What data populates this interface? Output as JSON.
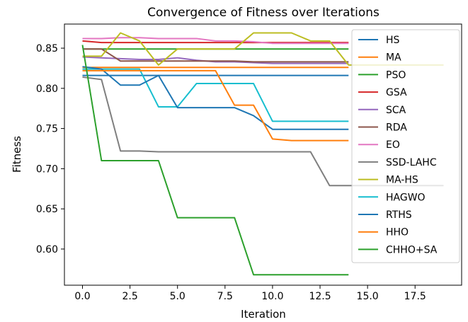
{
  "chart_data": {
    "type": "line",
    "title": "Convergence of Fitness over Iterations",
    "xlabel": "Iteration",
    "ylabel": "Fitness",
    "xlim": [
      -0.95,
      19.95
    ],
    "ylim": [
      0.555,
      0.88
    ],
    "xticks": [
      0.0,
      2.5,
      5.0,
      7.5,
      10.0,
      12.5,
      15.0,
      17.5
    ],
    "xtick_labels": [
      "0.0",
      "2.5",
      "5.0",
      "7.5",
      "10.0",
      "12.5",
      "15.0",
      "17.5"
    ],
    "yticks": [
      0.6,
      0.65,
      0.7,
      0.75,
      0.8,
      0.85
    ],
    "ytick_labels": [
      "0.60",
      "0.65",
      "0.70",
      "0.75",
      "0.80",
      "0.85"
    ],
    "grid": false,
    "legend_position": "right",
    "series": [
      {
        "name": "HS",
        "color": "#1f77b4",
        "x": [
          0,
          1,
          2,
          3,
          4,
          5,
          6,
          7,
          8,
          9,
          10,
          11,
          12,
          13,
          14
        ],
        "y": [
          0.816,
          0.816,
          0.816,
          0.816,
          0.816,
          0.816,
          0.816,
          0.816,
          0.816,
          0.816,
          0.816,
          0.816,
          0.816,
          0.816,
          0.816
        ]
      },
      {
        "name": "MA",
        "color": "#ff7f0e",
        "x": [
          0,
          1,
          2,
          3,
          4,
          5,
          6,
          7,
          8,
          9,
          10,
          11,
          12,
          13,
          14
        ],
        "y": [
          0.826,
          0.826,
          0.826,
          0.826,
          0.826,
          0.826,
          0.826,
          0.826,
          0.826,
          0.826,
          0.826,
          0.826,
          0.826,
          0.826,
          0.826
        ]
      },
      {
        "name": "PSO",
        "color": "#2ca02c",
        "x": [
          0,
          1,
          2,
          3,
          4,
          5,
          6,
          7,
          8,
          9,
          10,
          11,
          12,
          13,
          14
        ],
        "y": [
          0.849,
          0.849,
          0.849,
          0.849,
          0.849,
          0.849,
          0.849,
          0.849,
          0.849,
          0.849,
          0.849,
          0.849,
          0.849,
          0.849,
          0.849
        ]
      },
      {
        "name": "GSA",
        "color": "#d62728",
        "x": [
          0,
          1,
          2,
          3,
          4,
          5,
          6,
          7,
          8,
          9,
          10,
          11,
          12,
          13,
          14
        ],
        "y": [
          0.859,
          0.857,
          0.857,
          0.857,
          0.857,
          0.857,
          0.857,
          0.857,
          0.857,
          0.857,
          0.857,
          0.857,
          0.857,
          0.857,
          0.857
        ]
      },
      {
        "name": "SCA",
        "color": "#9467bd",
        "x": [
          0,
          1,
          2,
          3,
          4,
          5,
          6,
          7,
          8,
          9,
          10,
          11,
          12,
          13,
          14
        ],
        "y": [
          0.839,
          0.838,
          0.837,
          0.836,
          0.836,
          0.838,
          0.835,
          0.833,
          0.833,
          0.832,
          0.831,
          0.831,
          0.831,
          0.831,
          0.831
        ]
      },
      {
        "name": "RDA",
        "color": "#8c564b",
        "x": [
          0,
          1,
          2,
          3,
          4,
          5,
          6,
          7,
          8,
          9,
          10,
          11,
          12,
          13,
          14
        ],
        "y": [
          0.849,
          0.849,
          0.834,
          0.834,
          0.834,
          0.834,
          0.834,
          0.834,
          0.834,
          0.833,
          0.833,
          0.833,
          0.833,
          0.833,
          0.833
        ]
      },
      {
        "name": "EO",
        "color": "#e377c2",
        "x": [
          0,
          1,
          2,
          3,
          4,
          5,
          6,
          7,
          8,
          9,
          10,
          11,
          12,
          13,
          14
        ],
        "y": [
          0.862,
          0.862,
          0.863,
          0.863,
          0.862,
          0.862,
          0.862,
          0.859,
          0.859,
          0.858,
          0.856,
          0.856,
          0.856,
          0.856,
          0.856
        ]
      },
      {
        "name": "SSD-LAHC",
        "color": "#7f7f7f",
        "x": [
          0,
          1,
          2,
          3,
          4,
          5,
          6,
          7,
          8,
          9,
          10,
          11,
          12,
          13,
          14,
          15,
          16,
          17,
          18,
          19
        ],
        "y": [
          0.814,
          0.811,
          0.722,
          0.722,
          0.721,
          0.721,
          0.721,
          0.721,
          0.721,
          0.721,
          0.721,
          0.721,
          0.721,
          0.679,
          0.679,
          0.679,
          0.679,
          0.679,
          0.679,
          0.679
        ]
      },
      {
        "name": "MA-HS",
        "color": "#bcbd22",
        "x": [
          0,
          1,
          2,
          3,
          4,
          5,
          6,
          7,
          8,
          9,
          10,
          11,
          12,
          13,
          14,
          15,
          16,
          17,
          18,
          19
        ],
        "y": [
          0.84,
          0.84,
          0.869,
          0.859,
          0.829,
          0.849,
          0.849,
          0.849,
          0.849,
          0.869,
          0.869,
          0.869,
          0.859,
          0.859,
          0.829,
          0.829,
          0.829,
          0.829,
          0.829,
          0.829
        ]
      },
      {
        "name": "HAGWO",
        "color": "#17becf",
        "x": [
          0,
          1,
          2,
          3,
          4,
          5,
          6,
          7,
          8,
          9,
          10,
          11,
          12,
          13,
          14
        ],
        "y": [
          0.824,
          0.824,
          0.824,
          0.824,
          0.777,
          0.777,
          0.806,
          0.806,
          0.806,
          0.806,
          0.759,
          0.759,
          0.759,
          0.759,
          0.759
        ]
      },
      {
        "name": "RTHS",
        "color": "#1f77b4",
        "x": [
          0,
          1,
          2,
          3,
          4,
          5,
          6,
          7,
          8,
          9,
          10,
          11,
          12,
          13,
          14
        ],
        "y": [
          0.827,
          0.824,
          0.804,
          0.804,
          0.816,
          0.776,
          0.776,
          0.776,
          0.776,
          0.766,
          0.749,
          0.749,
          0.749,
          0.749,
          0.749
        ]
      },
      {
        "name": "HHO",
        "color": "#ff7f0e",
        "x": [
          0,
          1,
          2,
          3,
          4,
          5,
          6,
          7,
          8,
          9,
          10,
          11,
          12,
          13,
          14
        ],
        "y": [
          0.822,
          0.822,
          0.822,
          0.822,
          0.822,
          0.822,
          0.822,
          0.822,
          0.779,
          0.779,
          0.737,
          0.735,
          0.735,
          0.735,
          0.735
        ]
      },
      {
        "name": "CHHO+SA",
        "color": "#2ca02c",
        "x": [
          0,
          1,
          2,
          3,
          4,
          5,
          6,
          7,
          8,
          9,
          10,
          11,
          12,
          13,
          14
        ],
        "y": [
          0.854,
          0.71,
          0.71,
          0.71,
          0.71,
          0.639,
          0.639,
          0.639,
          0.639,
          0.568,
          0.568,
          0.568,
          0.568,
          0.568,
          0.568
        ]
      }
    ]
  }
}
